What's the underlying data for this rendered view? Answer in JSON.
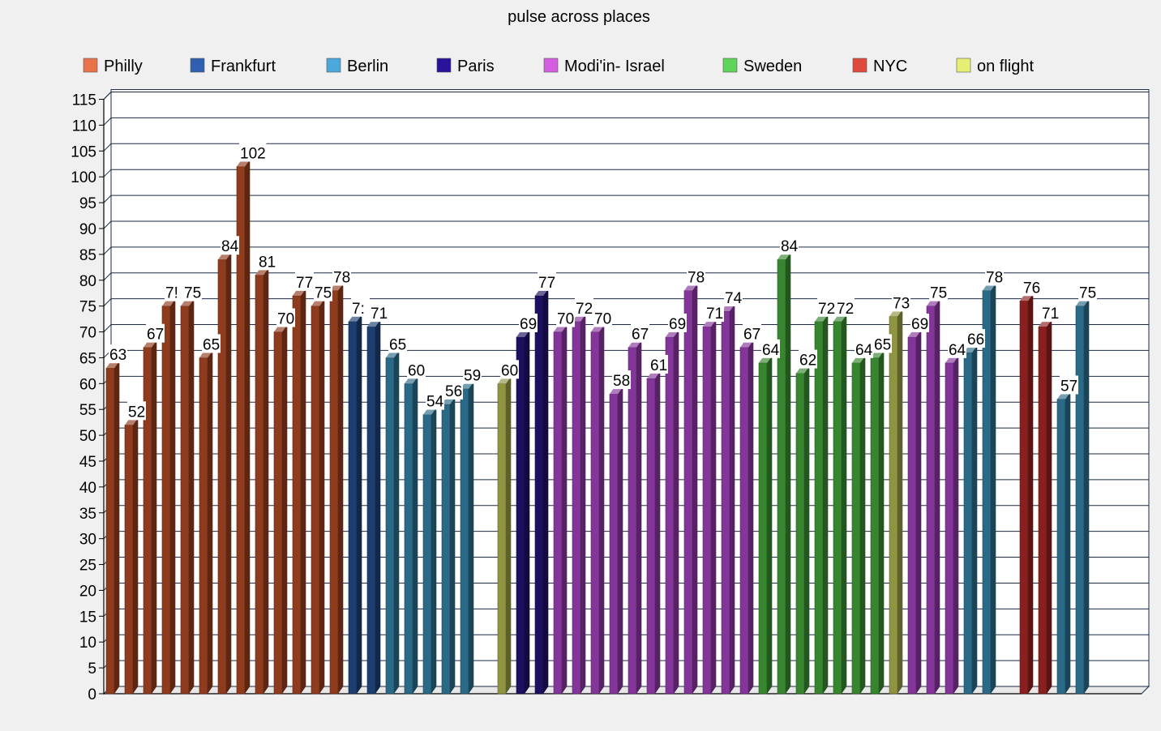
{
  "chart_data": {
    "type": "bar",
    "title": "pulse across places",
    "xlabel": "",
    "ylabel": "",
    "ylim": [
      0,
      115
    ],
    "ytick_step": 5,
    "grid": true,
    "legend_position": "top",
    "three_d": true,
    "legend": [
      {
        "name": "Philly",
        "color": "#e8734a"
      },
      {
        "name": "Frankfurt",
        "color": "#2e5fb0"
      },
      {
        "name": "Berlin",
        "color": "#4aa8dd"
      },
      {
        "name": "Paris",
        "color": "#2a139a"
      },
      {
        "name": "Modi'in- Israel",
        "color": "#d45ee0"
      },
      {
        "name": "Sweden",
        "color": "#5fd45a"
      },
      {
        "name": "NYC",
        "color": "#e04a3c"
      },
      {
        "name": "on flight",
        "color": "#e6ef74"
      }
    ],
    "bar_colors": {
      "Philly": "#8f3b1d",
      "Frankfurt": "#1d3e70",
      "Berlin": "#2a6a86",
      "Paris": "#1d1060",
      "Modi'in- Israel": "#84359a",
      "Sweden": "#37862f",
      "NYC": "#8a1f1f",
      "on flight": "#8f9440"
    },
    "bars": [
      {
        "value": 63,
        "place": "Philly",
        "label": "63"
      },
      {
        "value": 52,
        "place": "Philly",
        "label": "52"
      },
      {
        "value": 67,
        "place": "Philly",
        "label": "67"
      },
      {
        "value": 75,
        "place": "Philly",
        "label": "7!"
      },
      {
        "value": 75,
        "place": "Philly",
        "label": "75"
      },
      {
        "value": 65,
        "place": "Philly",
        "label": "65"
      },
      {
        "value": 84,
        "place": "Philly",
        "label": "84"
      },
      {
        "value": 102,
        "place": "Philly",
        "label": "102"
      },
      {
        "value": 81,
        "place": "Philly",
        "label": "81"
      },
      {
        "value": 70,
        "place": "Philly",
        "label": "70"
      },
      {
        "value": 77,
        "place": "Philly",
        "label": "77"
      },
      {
        "value": 75,
        "place": "Philly",
        "label": "75"
      },
      {
        "value": 78,
        "place": "Philly",
        "label": "78"
      },
      {
        "value": 72,
        "place": "Frankfurt",
        "label": "7:"
      },
      {
        "value": 71,
        "place": "Frankfurt",
        "label": "71"
      },
      {
        "value": 65,
        "place": "Berlin",
        "label": "65"
      },
      {
        "value": 60,
        "place": "Berlin",
        "label": "60"
      },
      {
        "value": 54,
        "place": "Berlin",
        "label": "54"
      },
      {
        "value": 56,
        "place": "Berlin",
        "label": "56"
      },
      {
        "value": 59,
        "place": "Berlin",
        "label": "59"
      },
      {
        "value": null,
        "place": "",
        "label": ""
      },
      {
        "value": 60,
        "place": "on flight",
        "label": "60"
      },
      {
        "value": 69,
        "place": "Paris",
        "label": "69"
      },
      {
        "value": 77,
        "place": "Paris",
        "label": "77"
      },
      {
        "value": 70,
        "place": "Modi'in- Israel",
        "label": "70"
      },
      {
        "value": 72,
        "place": "Modi'in- Israel",
        "label": "72"
      },
      {
        "value": 70,
        "place": "Modi'in- Israel",
        "label": "70"
      },
      {
        "value": 58,
        "place": "Modi'in- Israel",
        "label": "58"
      },
      {
        "value": 67,
        "place": "Modi'in- Israel",
        "label": "67"
      },
      {
        "value": 61,
        "place": "Modi'in- Israel",
        "label": "61"
      },
      {
        "value": 69,
        "place": "Modi'in- Israel",
        "label": "69"
      },
      {
        "value": 78,
        "place": "Modi'in- Israel",
        "label": "78"
      },
      {
        "value": 71,
        "place": "Modi'in- Israel",
        "label": "71"
      },
      {
        "value": 74,
        "place": "Modi'in- Israel",
        "label": "74"
      },
      {
        "value": 67,
        "place": "Modi'in- Israel",
        "label": "67"
      },
      {
        "value": 64,
        "place": "Sweden",
        "label": "64"
      },
      {
        "value": 84,
        "place": "Sweden",
        "label": "84"
      },
      {
        "value": 62,
        "place": "Sweden",
        "label": "62"
      },
      {
        "value": 72,
        "place": "Sweden",
        "label": "72"
      },
      {
        "value": 72,
        "place": "Sweden",
        "label": "72"
      },
      {
        "value": 64,
        "place": "Sweden",
        "label": "64"
      },
      {
        "value": 65,
        "place": "Sweden",
        "label": "65"
      },
      {
        "value": 73,
        "place": "on flight",
        "label": "73"
      },
      {
        "value": 69,
        "place": "Modi'in- Israel",
        "label": "69"
      },
      {
        "value": 75,
        "place": "Modi'in- Israel",
        "label": "75"
      },
      {
        "value": 64,
        "place": "Modi'in- Israel",
        "label": "64"
      },
      {
        "value": 66,
        "place": "Berlin",
        "label": "66"
      },
      {
        "value": 78,
        "place": "Berlin",
        "label": "78"
      },
      {
        "value": null,
        "place": "",
        "label": ""
      },
      {
        "value": 76,
        "place": "NYC",
        "label": "76"
      },
      {
        "value": 71,
        "place": "NYC",
        "label": "71"
      },
      {
        "value": 57,
        "place": "Berlin",
        "label": "57"
      },
      {
        "value": 75,
        "place": "Berlin",
        "label": "75"
      }
    ]
  }
}
